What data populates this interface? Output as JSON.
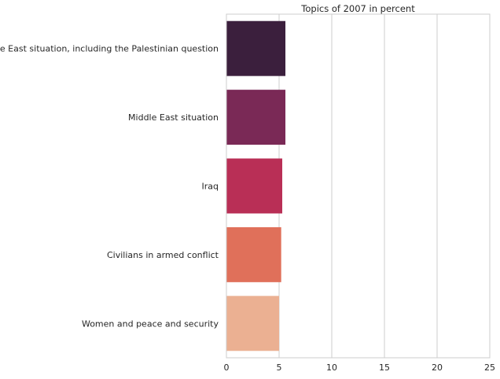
{
  "chart_data": {
    "type": "bar",
    "orientation": "horizontal",
    "title": "Topics of 2007 in percent",
    "xlabel": "",
    "ylabel": "",
    "categories": [
      "Middle East situation, including the Palestinian question",
      "Middle East situation",
      "Iraq",
      "Civilians in armed conflict",
      "Women and peace and security"
    ],
    "values": [
      5.6,
      5.6,
      5.3,
      5.2,
      5.0
    ],
    "colors": [
      "#3b1f3d",
      "#7a2956",
      "#b92f56",
      "#e0705a",
      "#ebb092"
    ],
    "xlim": [
      0,
      25
    ],
    "xticks": [
      0,
      5,
      10,
      15,
      20,
      25
    ],
    "grid": "vertical"
  }
}
